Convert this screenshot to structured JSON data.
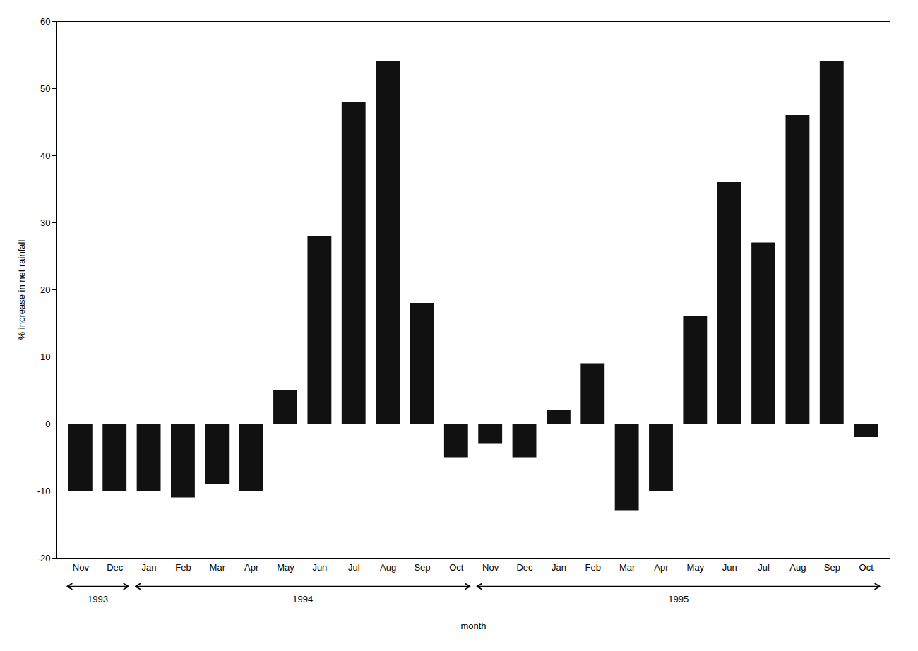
{
  "chart_data": {
    "type": "bar",
    "categories": [
      "Nov",
      "Dec",
      "Jan",
      "Feb",
      "Mar",
      "Apr",
      "May",
      "Jun",
      "Jul",
      "Aug",
      "Sep",
      "Oct",
      "Nov",
      "Dec",
      "Jan",
      "Feb",
      "Mar",
      "Apr",
      "May",
      "Jun",
      "Jul",
      "Aug",
      "Sep",
      "Oct"
    ],
    "values": [
      -10,
      -10,
      -10,
      -11,
      -9,
      -10,
      5,
      28,
      48,
      54,
      18,
      -5,
      -3,
      -5,
      2,
      9,
      -13,
      -10,
      16,
      36,
      27,
      46,
      54,
      -2
    ],
    "color": "#111111",
    "xlabel": "month",
    "ylabel": "% increase in net rainfall",
    "ylim": [
      -20,
      60
    ],
    "yticks": [
      -20,
      -10,
      0,
      10,
      20,
      30,
      40,
      50,
      60
    ],
    "grid": false,
    "annotations": [
      {
        "text": "1993",
        "start": 0,
        "end": 1
      },
      {
        "text": "1994",
        "start": 2,
        "end": 11
      },
      {
        "text": "1995",
        "start": 12,
        "end": 23
      }
    ]
  }
}
